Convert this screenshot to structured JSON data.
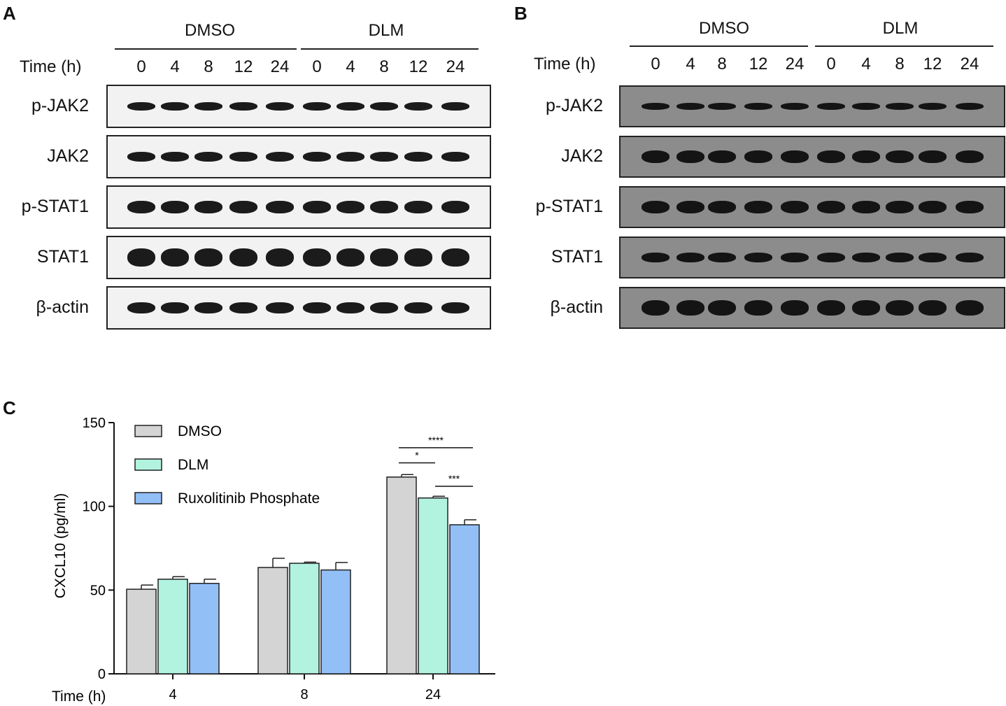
{
  "panels": {
    "a": {
      "letter": "A",
      "groups": [
        "DMSO",
        "DLM"
      ],
      "time_label": "Time (h)",
      "lanes": [
        "0",
        "4",
        "8",
        "12",
        "24",
        "0",
        "4",
        "8",
        "12",
        "24"
      ],
      "rows": [
        "p-JAK2",
        "JAK2",
        "p-STAT1",
        "STAT1",
        "β-actin"
      ]
    },
    "b": {
      "letter": "B",
      "groups": [
        "DMSO",
        "DLM"
      ],
      "time_label": "Time (h)",
      "lanes": [
        "0",
        "4",
        "8",
        "12",
        "24",
        "0",
        "4",
        "8",
        "12",
        "24"
      ],
      "rows": [
        "p-JAK2",
        "JAK2",
        "p-STAT1",
        "STAT1",
        "β-actin"
      ]
    },
    "c": {
      "letter": "C"
    }
  },
  "colors": {
    "dmso": "#d4d4d4",
    "dlm": "#b2f3e0",
    "ruxolitinib": "#93bff7"
  },
  "chart_data": {
    "type": "bar",
    "categories": [
      "4",
      "8",
      "24"
    ],
    "xlabel": "Time (h)",
    "ylabel": "CXCL10 (pg/ml)",
    "ylim": [
      0,
      150
    ],
    "yticks": [
      "0",
      "50",
      "100",
      "150"
    ],
    "legend_position": "top-left",
    "series": [
      {
        "name": "DMSO",
        "values": [
          50.5,
          63.5,
          117.5
        ],
        "errors": [
          2.5,
          5.5,
          1.5
        ]
      },
      {
        "name": "DLM",
        "values": [
          56.5,
          66.0,
          105.0
        ],
        "errors": [
          1.5,
          0.7,
          1.0
        ]
      },
      {
        "name": "Ruxolitinib Phosphate",
        "values": [
          54.0,
          62.0,
          89.0
        ],
        "errors": [
          2.5,
          4.5,
          3.0
        ]
      }
    ],
    "annotations": [
      "****",
      "*",
      "***"
    ]
  }
}
